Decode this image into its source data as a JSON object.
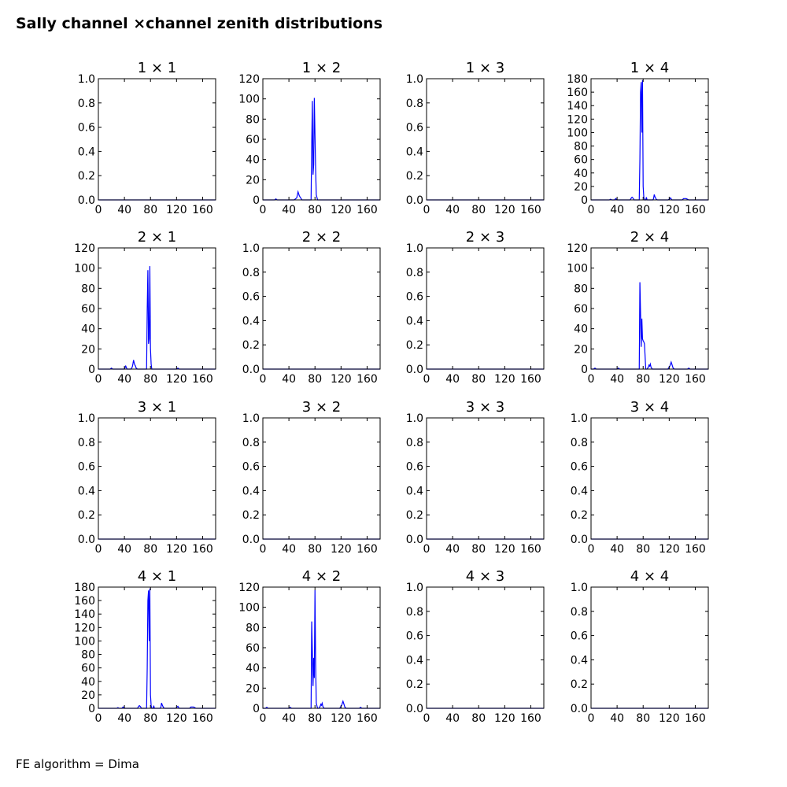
{
  "title": "Sally channel ×channel zenith distributions",
  "footer": "FE algorithm = Dima",
  "colors": {
    "series": "#0000ff",
    "axes": "#000000",
    "background": "#ffffff"
  },
  "chart_data": [
    {
      "panel": "1 × 1",
      "type": "line",
      "title": "1  × 1",
      "xlim": [
        0,
        180
      ],
      "ylim": [
        0,
        1.0
      ],
      "xticks": [
        0,
        40,
        80,
        120,
        160
      ],
      "yticks": [
        0.0,
        0.2,
        0.4,
        0.6,
        0.8,
        1.0
      ],
      "xtick_labels": [
        "0",
        "40",
        "80",
        "120",
        "160"
      ],
      "ytick_labels": [
        "0.0",
        "0.2",
        "0.4",
        "0.6",
        "0.8",
        "1.0"
      ],
      "series": [
        {
          "x": [
            0,
            180
          ],
          "y": [
            0,
            0
          ]
        }
      ]
    },
    {
      "panel": "1 × 2",
      "type": "line",
      "title": "1  × 2",
      "xlim": [
        0,
        180
      ],
      "ylim": [
        0,
        120
      ],
      "xticks": [
        0,
        40,
        80,
        120,
        160
      ],
      "yticks": [
        0,
        20,
        40,
        60,
        80,
        100,
        120
      ],
      "xtick_labels": [
        "0",
        "40",
        "80",
        "120",
        "160"
      ],
      "ytick_labels": [
        "0",
        "20",
        "40",
        "60",
        "80",
        "100",
        "120"
      ],
      "series": [
        {
          "x": [
            0,
            18,
            20,
            22,
            48,
            52,
            53,
            54,
            55,
            56,
            57,
            58,
            60,
            62,
            74,
            75,
            76,
            77,
            78,
            79,
            80,
            81,
            82,
            84,
            100,
            180
          ],
          "y": [
            0,
            0,
            1,
            0,
            0,
            2,
            5,
            8,
            6,
            4,
            3,
            2,
            0,
            0,
            0,
            55,
            98,
            25,
            35,
            101,
            65,
            30,
            5,
            0,
            0,
            0
          ]
        }
      ]
    },
    {
      "panel": "1 × 3",
      "type": "line",
      "title": "1  × 3",
      "xlim": [
        0,
        180
      ],
      "ylim": [
        0,
        1.0
      ],
      "xticks": [
        0,
        40,
        80,
        120,
        160
      ],
      "yticks": [
        0.0,
        0.2,
        0.4,
        0.6,
        0.8,
        1.0
      ],
      "xtick_labels": [
        "0",
        "40",
        "80",
        "120",
        "160"
      ],
      "ytick_labels": [
        "0.0",
        "0.2",
        "0.4",
        "0.6",
        "0.8",
        "1.0"
      ],
      "series": [
        {
          "x": [
            0,
            180
          ],
          "y": [
            0,
            0
          ]
        }
      ]
    },
    {
      "panel": "1 × 4",
      "type": "line",
      "title": "1  × 4",
      "xlim": [
        0,
        180
      ],
      "ylim": [
        0,
        180
      ],
      "xticks": [
        0,
        40,
        80,
        120,
        160
      ],
      "yticks": [
        0,
        20,
        40,
        60,
        80,
        100,
        120,
        140,
        160,
        180
      ],
      "xtick_labels": [
        "0",
        "40",
        "80",
        "120",
        "160"
      ],
      "ytick_labels": [
        "0",
        "20",
        "40",
        "60",
        "80",
        "100",
        "120",
        "140",
        "160",
        "180"
      ],
      "series": [
        {
          "x": [
            0,
            28,
            30,
            32,
            36,
            38,
            40,
            42,
            60,
            62,
            63,
            64,
            65,
            66,
            74,
            75,
            76,
            77,
            78,
            79,
            80,
            81,
            82,
            84,
            85,
            86,
            95,
            96,
            97,
            98,
            99,
            100,
            102,
            108,
            118,
            120,
            122,
            124,
            125,
            140,
            142,
            144,
            146,
            148,
            150,
            180
          ],
          "y": [
            0,
            0,
            1,
            0,
            0,
            2,
            0,
            0,
            0,
            3,
            4,
            3,
            2,
            0,
            0,
            60,
            160,
            175,
            100,
            178,
            20,
            4,
            0,
            0,
            4,
            0,
            0,
            2,
            8,
            5,
            3,
            1,
            0,
            0,
            0,
            1,
            3,
            0,
            0,
            0,
            2,
            2,
            2,
            1,
            0,
            0
          ]
        }
      ]
    },
    {
      "panel": "2 × 1",
      "type": "line",
      "title": "2  × 1",
      "xlim": [
        0,
        180
      ],
      "ylim": [
        0,
        120
      ],
      "xticks": [
        0,
        40,
        80,
        120,
        160
      ],
      "yticks": [
        0,
        20,
        40,
        60,
        80,
        100,
        120
      ],
      "xtick_labels": [
        "0",
        "40",
        "80",
        "120",
        "160"
      ],
      "ytick_labels": [
        "0",
        "20",
        "40",
        "60",
        "80",
        "100",
        "120"
      ],
      "series": [
        {
          "x": [
            0,
            18,
            20,
            22,
            40,
            42,
            44,
            48,
            50,
            52,
            53,
            54,
            55,
            56,
            57,
            58,
            60,
            62,
            74,
            75,
            76,
            77,
            78,
            79,
            80,
            81,
            82,
            84,
            120,
            122,
            124,
            180
          ],
          "y": [
            0,
            0,
            1,
            0,
            0,
            3,
            0,
            0,
            0,
            2,
            5,
            9,
            6,
            4,
            3,
            1,
            0,
            0,
            0,
            60,
            98,
            25,
            30,
            102,
            20,
            5,
            0,
            0,
            0,
            1,
            0,
            0
          ]
        }
      ]
    },
    {
      "panel": "2 × 2",
      "type": "line",
      "title": "2  × 2",
      "xlim": [
        0,
        180
      ],
      "ylim": [
        0,
        1.0
      ],
      "xticks": [
        0,
        40,
        80,
        120,
        160
      ],
      "yticks": [
        0.0,
        0.2,
        0.4,
        0.6,
        0.8,
        1.0
      ],
      "xtick_labels": [
        "0",
        "40",
        "80",
        "120",
        "160"
      ],
      "ytick_labels": [
        "0.0",
        "0.2",
        "0.4",
        "0.6",
        "0.8",
        "1.0"
      ],
      "series": [
        {
          "x": [
            0,
            180
          ],
          "y": [
            0,
            0
          ]
        }
      ]
    },
    {
      "panel": "2 × 3",
      "type": "line",
      "title": "2  × 3",
      "xlim": [
        0,
        180
      ],
      "ylim": [
        0,
        1.0
      ],
      "xticks": [
        0,
        40,
        80,
        120,
        160
      ],
      "yticks": [
        0.0,
        0.2,
        0.4,
        0.6,
        0.8,
        1.0
      ],
      "xtick_labels": [
        "0",
        "40",
        "80",
        "120",
        "160"
      ],
      "ytick_labels": [
        "0.0",
        "0.2",
        "0.4",
        "0.6",
        "0.8",
        "1.0"
      ],
      "series": [
        {
          "x": [
            0,
            180
          ],
          "y": [
            0,
            0
          ]
        }
      ]
    },
    {
      "panel": "2 × 4",
      "type": "line",
      "title": "2  × 4",
      "xlim": [
        0,
        180
      ],
      "ylim": [
        0,
        120
      ],
      "xticks": [
        0,
        40,
        80,
        120,
        160
      ],
      "yticks": [
        0,
        20,
        40,
        60,
        80,
        100,
        120
      ],
      "xtick_labels": [
        "0",
        "40",
        "80",
        "120",
        "160"
      ],
      "ytick_labels": [
        "0",
        "20",
        "40",
        "60",
        "80",
        "100",
        "120"
      ],
      "series": [
        {
          "x": [
            0,
            4,
            6,
            8,
            40,
            42,
            44,
            72,
            74,
            75,
            76,
            77,
            78,
            79,
            80,
            81,
            82,
            84,
            86,
            88,
            89,
            90,
            91,
            92,
            94,
            118,
            120,
            121,
            122,
            123,
            124,
            125,
            126,
            128,
            148,
            150,
            152,
            180
          ],
          "y": [
            0,
            0,
            1,
            0,
            0,
            1,
            0,
            0,
            0,
            86,
            55,
            22,
            50,
            30,
            28,
            27,
            25,
            0,
            0,
            2,
            4,
            3,
            5,
            2,
            0,
            0,
            2,
            3,
            5,
            7,
            5,
            3,
            1,
            0,
            0,
            1,
            0,
            0
          ]
        }
      ]
    },
    {
      "panel": "3 × 1",
      "type": "line",
      "title": "3  × 1",
      "xlim": [
        0,
        180
      ],
      "ylim": [
        0,
        1.0
      ],
      "xticks": [
        0,
        40,
        80,
        120,
        160
      ],
      "yticks": [
        0.0,
        0.2,
        0.4,
        0.6,
        0.8,
        1.0
      ],
      "xtick_labels": [
        "0",
        "40",
        "80",
        "120",
        "160"
      ],
      "ytick_labels": [
        "0.0",
        "0.2",
        "0.4",
        "0.6",
        "0.8",
        "1.0"
      ],
      "series": [
        {
          "x": [
            0,
            180
          ],
          "y": [
            0,
            0
          ]
        }
      ]
    },
    {
      "panel": "3 × 2",
      "type": "line",
      "title": "3  × 2",
      "xlim": [
        0,
        180
      ],
      "ylim": [
        0,
        1.0
      ],
      "xticks": [
        0,
        40,
        80,
        120,
        160
      ],
      "yticks": [
        0.0,
        0.2,
        0.4,
        0.6,
        0.8,
        1.0
      ],
      "xtick_labels": [
        "0",
        "40",
        "80",
        "120",
        "160"
      ],
      "ytick_labels": [
        "0.0",
        "0.2",
        "0.4",
        "0.6",
        "0.8",
        "1.0"
      ],
      "series": [
        {
          "x": [
            0,
            180
          ],
          "y": [
            0,
            0
          ]
        }
      ]
    },
    {
      "panel": "3 × 3",
      "type": "line",
      "title": "3  × 3",
      "xlim": [
        0,
        180
      ],
      "ylim": [
        0,
        1.0
      ],
      "xticks": [
        0,
        40,
        80,
        120,
        160
      ],
      "yticks": [
        0.0,
        0.2,
        0.4,
        0.6,
        0.8,
        1.0
      ],
      "xtick_labels": [
        "0",
        "40",
        "80",
        "120",
        "160"
      ],
      "ytick_labels": [
        "0.0",
        "0.2",
        "0.4",
        "0.6",
        "0.8",
        "1.0"
      ],
      "series": [
        {
          "x": [
            0,
            180
          ],
          "y": [
            0,
            0
          ]
        }
      ]
    },
    {
      "panel": "3 × 4",
      "type": "line",
      "title": "3  × 4",
      "xlim": [
        0,
        180
      ],
      "ylim": [
        0,
        1.0
      ],
      "xticks": [
        0,
        40,
        80,
        120,
        160
      ],
      "yticks": [
        0.0,
        0.2,
        0.4,
        0.6,
        0.8,
        1.0
      ],
      "xtick_labels": [
        "0",
        "40",
        "80",
        "120",
        "160"
      ],
      "ytick_labels": [
        "0.0",
        "0.2",
        "0.4",
        "0.6",
        "0.8",
        "1.0"
      ],
      "series": [
        {
          "x": [
            0,
            180
          ],
          "y": [
            0,
            0
          ]
        }
      ]
    },
    {
      "panel": "4 × 1",
      "type": "line",
      "title": "4  × 1",
      "xlim": [
        0,
        180
      ],
      "ylim": [
        0,
        180
      ],
      "xticks": [
        0,
        40,
        80,
        120,
        160
      ],
      "yticks": [
        0,
        20,
        40,
        60,
        80,
        100,
        120,
        140,
        160,
        180
      ],
      "xtick_labels": [
        "0",
        "40",
        "80",
        "120",
        "160"
      ],
      "ytick_labels": [
        "0",
        "20",
        "40",
        "60",
        "80",
        "100",
        "120",
        "140",
        "160",
        "180"
      ],
      "series": [
        {
          "x": [
            0,
            28,
            30,
            32,
            36,
            38,
            40,
            42,
            60,
            62,
            63,
            64,
            65,
            66,
            74,
            75,
            76,
            77,
            78,
            79,
            80,
            81,
            82,
            84,
            85,
            86,
            95,
            96,
            97,
            98,
            99,
            100,
            102,
            108,
            118,
            120,
            122,
            124,
            125,
            140,
            142,
            144,
            146,
            148,
            150,
            180
          ],
          "y": [
            0,
            0,
            1,
            0,
            0,
            2,
            0,
            0,
            0,
            3,
            4,
            3,
            2,
            0,
            0,
            60,
            160,
            175,
            100,
            178,
            20,
            4,
            0,
            0,
            4,
            0,
            0,
            2,
            8,
            5,
            3,
            1,
            0,
            0,
            0,
            1,
            3,
            0,
            0,
            0,
            2,
            2,
            2,
            1,
            0,
            0
          ]
        }
      ]
    },
    {
      "panel": "4 × 2",
      "type": "line",
      "title": "4  × 2",
      "xlim": [
        0,
        180
      ],
      "ylim": [
        0,
        120
      ],
      "xticks": [
        0,
        40,
        80,
        120,
        160
      ],
      "yticks": [
        0,
        20,
        40,
        60,
        80,
        100,
        120
      ],
      "xtick_labels": [
        "0",
        "40",
        "80",
        "120",
        "160"
      ],
      "ytick_labels": [
        "0",
        "20",
        "40",
        "60",
        "80",
        "100",
        "120"
      ],
      "series": [
        {
          "x": [
            0,
            4,
            6,
            8,
            40,
            42,
            44,
            72,
            74,
            75,
            76,
            77,
            78,
            79,
            80,
            81,
            82,
            84,
            86,
            88,
            89,
            90,
            91,
            92,
            94,
            118,
            120,
            121,
            122,
            123,
            124,
            125,
            126,
            128,
            148,
            150,
            152,
            180
          ],
          "y": [
            0,
            0,
            1,
            0,
            0,
            1,
            0,
            0,
            0,
            86,
            55,
            22,
            50,
            30,
            117,
            45,
            5,
            0,
            0,
            2,
            4,
            3,
            5,
            2,
            0,
            0,
            2,
            3,
            5,
            7,
            5,
            3,
            1,
            0,
            0,
            1,
            0,
            0
          ]
        }
      ]
    },
    {
      "panel": "4 × 3",
      "type": "line",
      "title": "4  × 3",
      "xlim": [
        0,
        180
      ],
      "ylim": [
        0,
        1.0
      ],
      "xticks": [
        0,
        40,
        80,
        120,
        160
      ],
      "yticks": [
        0.0,
        0.2,
        0.4,
        0.6,
        0.8,
        1.0
      ],
      "xtick_labels": [
        "0",
        "40",
        "80",
        "120",
        "160"
      ],
      "ytick_labels": [
        "0.0",
        "0.2",
        "0.4",
        "0.6",
        "0.8",
        "1.0"
      ],
      "series": [
        {
          "x": [
            0,
            180
          ],
          "y": [
            0,
            0
          ]
        }
      ]
    },
    {
      "panel": "4 × 4",
      "type": "line",
      "title": "4  × 4",
      "xlim": [
        0,
        180
      ],
      "ylim": [
        0,
        1.0
      ],
      "xticks": [
        0,
        40,
        80,
        120,
        160
      ],
      "yticks": [
        0.0,
        0.2,
        0.4,
        0.6,
        0.8,
        1.0
      ],
      "xtick_labels": [
        "0",
        "40",
        "80",
        "120",
        "160"
      ],
      "ytick_labels": [
        "0.0",
        "0.2",
        "0.4",
        "0.6",
        "0.8",
        "1.0"
      ],
      "series": [
        {
          "x": [
            0,
            180
          ],
          "y": [
            0,
            0
          ]
        }
      ]
    }
  ]
}
